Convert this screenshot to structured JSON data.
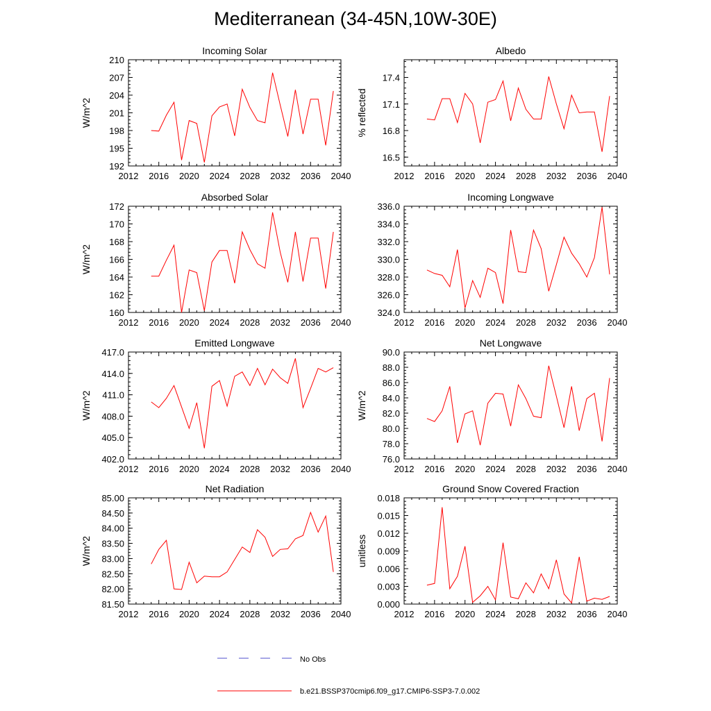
{
  "page": {
    "title": "Mediterranean (34-45N,10W-30E)"
  },
  "legend": {
    "entries": [
      {
        "label": "No Obs",
        "color": "#4d4dcc",
        "style": "dashed"
      },
      {
        "label": "b.e21.BSSP370cmip6.f09_g17.CMIP6-SSP3-7.0.002",
        "color": "#ff0000",
        "style": "solid"
      }
    ]
  },
  "chart_data": [
    {
      "type": "line",
      "title": "Incoming Solar",
      "xlabel": "",
      "ylabel": "W/m^2",
      "xlim": [
        2012,
        2040
      ],
      "ylim": [
        192,
        210
      ],
      "xticks": [
        2012,
        2016,
        2020,
        2024,
        2028,
        2032,
        2036,
        2040
      ],
      "yticks": [
        "192",
        "195",
        "198",
        "201",
        "204",
        "207",
        "210"
      ],
      "x": [
        2015,
        2016,
        2017,
        2018,
        2019,
        2020,
        2021,
        2022,
        2023,
        2024,
        2025,
        2026,
        2027,
        2028,
        2029,
        2030,
        2031,
        2032,
        2033,
        2034,
        2035,
        2036,
        2037,
        2038,
        2039
      ],
      "series": [
        {
          "color": "#ff0000",
          "values": [
            198.0,
            197.9,
            200.6,
            202.8,
            193.0,
            199.7,
            199.2,
            192.6,
            200.5,
            202.0,
            202.5,
            197.1,
            205.0,
            201.9,
            199.7,
            199.3,
            207.8,
            202.3,
            197.0,
            204.9,
            197.4,
            203.3,
            203.3,
            195.5,
            204.7
          ]
        }
      ]
    },
    {
      "type": "line",
      "title": "Albedo",
      "xlabel": "",
      "ylabel": "% reflected",
      "xlim": [
        2012,
        2040
      ],
      "ylim": [
        16.4,
        17.6
      ],
      "xticks": [
        2012,
        2016,
        2020,
        2024,
        2028,
        2032,
        2036,
        2040
      ],
      "yticks": [
        "16.5",
        "16.8",
        "17.1",
        "17.4"
      ],
      "x": [
        2015,
        2016,
        2017,
        2018,
        2019,
        2020,
        2021,
        2022,
        2023,
        2024,
        2025,
        2026,
        2027,
        2028,
        2029,
        2030,
        2031,
        2032,
        2033,
        2034,
        2035,
        2036,
        2037,
        2038,
        2039
      ],
      "series": [
        {
          "color": "#ff0000",
          "values": [
            16.93,
            16.92,
            17.16,
            17.16,
            16.89,
            17.22,
            17.1,
            16.66,
            17.12,
            17.15,
            17.36,
            16.91,
            17.28,
            17.04,
            16.93,
            16.93,
            17.41,
            17.1,
            16.82,
            17.2,
            17.0,
            17.01,
            17.01,
            16.56,
            17.19
          ]
        }
      ]
    },
    {
      "type": "line",
      "title": "Absorbed Solar",
      "xlabel": "",
      "ylabel": "W/m^2",
      "xlim": [
        2012,
        2040
      ],
      "ylim": [
        160,
        172
      ],
      "xticks": [
        2012,
        2016,
        2020,
        2024,
        2028,
        2032,
        2036,
        2040
      ],
      "yticks": [
        "160",
        "162",
        "164",
        "166",
        "168",
        "170",
        "172"
      ],
      "x": [
        2015,
        2016,
        2017,
        2018,
        2019,
        2020,
        2021,
        2022,
        2023,
        2024,
        2025,
        2026,
        2027,
        2028,
        2029,
        2030,
        2031,
        2032,
        2033,
        2034,
        2035,
        2036,
        2037,
        2038,
        2039
      ],
      "series": [
        {
          "color": "#ff0000",
          "values": [
            164.1,
            164.1,
            165.9,
            167.6,
            160.0,
            164.8,
            164.5,
            160.2,
            165.7,
            167.0,
            167.0,
            163.3,
            169.1,
            167.1,
            165.5,
            165.0,
            171.3,
            166.8,
            163.4,
            169.1,
            163.5,
            168.4,
            168.4,
            162.7,
            169.1
          ]
        }
      ]
    },
    {
      "type": "line",
      "title": "Incoming Longwave",
      "xlabel": "",
      "ylabel": "",
      "xlim": [
        2012,
        2040
      ],
      "ylim": [
        324,
        336
      ],
      "xticks": [
        2012,
        2016,
        2020,
        2024,
        2028,
        2032,
        2036,
        2040
      ],
      "yticks": [
        "324.0",
        "326.0",
        "328.0",
        "330.0",
        "332.0",
        "334.0",
        "336.0"
      ],
      "x": [
        2015,
        2016,
        2017,
        2018,
        2019,
        2020,
        2021,
        2022,
        2023,
        2024,
        2025,
        2026,
        2027,
        2028,
        2029,
        2030,
        2031,
        2032,
        2033,
        2034,
        2035,
        2036,
        2037,
        2038,
        2039
      ],
      "series": [
        {
          "color": "#ff0000",
          "values": [
            328.8,
            328.4,
            328.2,
            326.9,
            331.1,
            324.5,
            327.6,
            325.7,
            329.0,
            328.5,
            325.0,
            333.3,
            328.6,
            328.5,
            333.3,
            331.2,
            326.4,
            329.4,
            332.5,
            330.7,
            329.5,
            328.0,
            330.2,
            335.9,
            328.3
          ]
        }
      ]
    },
    {
      "type": "line",
      "title": "Emitted Longwave",
      "xlabel": "",
      "ylabel": "W/m^2",
      "xlim": [
        2012,
        2040
      ],
      "ylim": [
        402,
        417
      ],
      "xticks": [
        2012,
        2016,
        2020,
        2024,
        2028,
        2032,
        2036,
        2040
      ],
      "yticks": [
        "402.0",
        "405.0",
        "408.0",
        "411.0",
        "414.0",
        "417.0"
      ],
      "x": [
        2015,
        2016,
        2017,
        2018,
        2019,
        2020,
        2021,
        2022,
        2023,
        2024,
        2025,
        2026,
        2027,
        2028,
        2029,
        2030,
        2031,
        2032,
        2033,
        2034,
        2035,
        2036,
        2037,
        2038,
        2039
      ],
      "series": [
        {
          "color": "#ff0000",
          "values": [
            410.0,
            409.2,
            410.5,
            412.3,
            409.3,
            406.3,
            409.9,
            403.5,
            412.2,
            413.0,
            409.4,
            413.6,
            414.2,
            412.3,
            414.7,
            412.4,
            414.6,
            413.4,
            412.6,
            416.1,
            409.2,
            411.9,
            414.7,
            414.2,
            414.8
          ]
        }
      ]
    },
    {
      "type": "line",
      "title": "Net Longwave",
      "xlabel": "",
      "ylabel": "W/m^2",
      "xlim": [
        2012,
        2040
      ],
      "ylim": [
        76,
        90
      ],
      "xticks": [
        2012,
        2016,
        2020,
        2024,
        2028,
        2032,
        2036,
        2040
      ],
      "yticks": [
        "76.0",
        "78.0",
        "80.0",
        "82.0",
        "84.0",
        "86.0",
        "88.0",
        "90.0"
      ],
      "x": [
        2015,
        2016,
        2017,
        2018,
        2019,
        2020,
        2021,
        2022,
        2023,
        2024,
        2025,
        2026,
        2027,
        2028,
        2029,
        2030,
        2031,
        2032,
        2033,
        2034,
        2035,
        2036,
        2037,
        2038,
        2039
      ],
      "series": [
        {
          "color": "#ff0000",
          "values": [
            81.3,
            80.9,
            82.3,
            85.5,
            78.1,
            81.9,
            82.3,
            77.8,
            83.3,
            84.6,
            84.5,
            80.3,
            85.7,
            83.9,
            81.6,
            81.4,
            88.2,
            84.2,
            80.1,
            85.5,
            79.7,
            83.9,
            84.6,
            78.3,
            86.6
          ]
        }
      ]
    },
    {
      "type": "line",
      "title": "Net Radiation",
      "xlabel": "",
      "ylabel": "W/m^2",
      "xlim": [
        2012,
        2040
      ],
      "ylim": [
        81.5,
        85.0
      ],
      "xticks": [
        2012,
        2016,
        2020,
        2024,
        2028,
        2032,
        2036,
        2040
      ],
      "yticks": [
        "81.50",
        "82.00",
        "82.50",
        "83.00",
        "83.50",
        "84.00",
        "84.50",
        "85.00"
      ],
      "x": [
        2015,
        2016,
        2017,
        2018,
        2019,
        2020,
        2021,
        2022,
        2023,
        2024,
        2025,
        2026,
        2027,
        2028,
        2029,
        2030,
        2031,
        2032,
        2033,
        2034,
        2035,
        2036,
        2037,
        2038,
        2039
      ],
      "series": [
        {
          "color": "#ff0000",
          "values": [
            82.82,
            83.3,
            83.6,
            82.0,
            81.98,
            82.88,
            82.2,
            82.42,
            82.4,
            82.4,
            82.56,
            82.97,
            83.38,
            83.2,
            83.95,
            83.7,
            83.07,
            83.3,
            83.32,
            83.65,
            83.76,
            84.52,
            83.87,
            84.4,
            82.56
          ]
        }
      ]
    },
    {
      "type": "line",
      "title": "Ground Snow Covered Fraction",
      "xlabel": "",
      "ylabel": "unitless",
      "xlim": [
        2012,
        2040
      ],
      "ylim": [
        0,
        0.018
      ],
      "xticks": [
        2012,
        2016,
        2020,
        2024,
        2028,
        2032,
        2036,
        2040
      ],
      "yticks": [
        "0.000",
        "0.003",
        "0.006",
        "0.009",
        "0.012",
        "0.015",
        "0.018"
      ],
      "x": [
        2015,
        2016,
        2017,
        2018,
        2019,
        2020,
        2021,
        2022,
        2023,
        2024,
        2025,
        2026,
        2027,
        2028,
        2029,
        2030,
        2031,
        2032,
        2033,
        2034,
        2035,
        2036,
        2037,
        2038,
        2039
      ],
      "series": [
        {
          "color": "#ff0000",
          "values": [
            0.0032,
            0.0035,
            0.0164,
            0.0026,
            0.0047,
            0.0098,
            0.0003,
            0.0014,
            0.003,
            0.0007,
            0.0104,
            0.0012,
            0.0009,
            0.0036,
            0.0019,
            0.0051,
            0.0026,
            0.0075,
            0.0017,
            0.0002,
            0.008,
            0.0005,
            0.001,
            0.0008,
            0.0013
          ]
        }
      ]
    }
  ]
}
